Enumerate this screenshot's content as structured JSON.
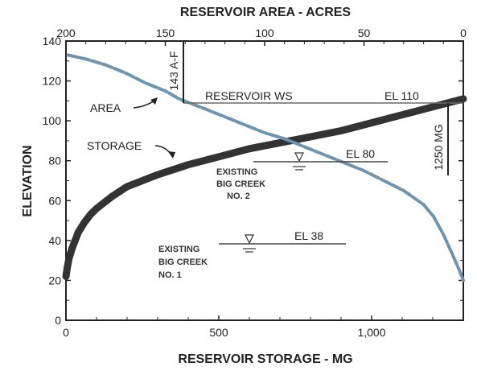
{
  "chart_data": {
    "type": "line",
    "title": "",
    "top_axis": {
      "label": "RESERVOIR AREA - ACRES",
      "range": [
        200,
        0
      ],
      "ticks": [
        {
          "value": 200,
          "label": "200"
        },
        {
          "value": 150,
          "label": "150"
        },
        {
          "value": 100,
          "label": "100"
        },
        {
          "value": 50,
          "label": "50"
        },
        {
          "value": 0,
          "label": "0"
        }
      ]
    },
    "x_axis": {
      "label": "RESERVOIR STORAGE - MG",
      "range": [
        0,
        1300
      ],
      "ticks": [
        {
          "value": 0,
          "label": "0"
        },
        {
          "value": 500,
          "label": "500"
        },
        {
          "value": 1000,
          "label": "1,000"
        }
      ]
    },
    "y_axis": {
      "label": "ELEVATION",
      "range": [
        0,
        140
      ],
      "ticks": [
        {
          "value": 0,
          "label": "0"
        },
        {
          "value": 20,
          "label": "20"
        },
        {
          "value": 40,
          "label": "40"
        },
        {
          "value": 60,
          "label": "60"
        },
        {
          "value": 80,
          "label": "80"
        },
        {
          "value": 100,
          "label": "100"
        },
        {
          "value": 120,
          "label": "120"
        },
        {
          "value": 140,
          "label": "140"
        }
      ]
    },
    "grid": false,
    "series": [
      {
        "name": "STORAGE",
        "axis": "bottom",
        "color": "#333333",
        "style": "solid-thick",
        "points": [
          [
            0,
            22
          ],
          [
            5,
            27
          ],
          [
            10,
            31
          ],
          [
            20,
            36
          ],
          [
            30,
            40
          ],
          [
            40,
            44
          ],
          [
            60,
            49
          ],
          [
            80,
            53
          ],
          [
            100,
            56
          ],
          [
            150,
            62
          ],
          [
            200,
            67
          ],
          [
            300,
            73
          ],
          [
            400,
            78
          ],
          [
            500,
            82
          ],
          [
            600,
            86
          ],
          [
            700,
            89
          ],
          [
            800,
            92
          ],
          [
            900,
            95
          ],
          [
            1000,
            99
          ],
          [
            1100,
            103
          ],
          [
            1200,
            107
          ],
          [
            1300,
            111
          ]
        ]
      },
      {
        "name": "AREA",
        "axis": "top",
        "color": "#6f94ad",
        "style": "dashed",
        "points": [
          [
            199,
            133
          ],
          [
            190,
            131
          ],
          [
            180,
            128
          ],
          [
            170,
            124
          ],
          [
            160,
            119
          ],
          [
            150,
            115
          ],
          [
            143,
            111
          ],
          [
            130,
            106
          ],
          [
            120,
            102
          ],
          [
            110,
            98
          ],
          [
            100,
            94
          ],
          [
            90,
            91
          ],
          [
            80,
            87
          ],
          [
            70,
            83
          ],
          [
            60,
            79
          ],
          [
            50,
            75
          ],
          [
            40,
            70
          ],
          [
            30,
            65
          ],
          [
            20,
            58
          ],
          [
            15,
            52
          ],
          [
            10,
            43
          ],
          [
            5,
            32
          ],
          [
            2,
            25
          ],
          [
            0,
            20
          ]
        ]
      }
    ],
    "annotations": {
      "area_label": "AREA",
      "storage_label": "STORAGE",
      "area_marker": "143 A-F",
      "reservoir_ws": "RESERVOIR WS",
      "el_110": "EL 110",
      "storage_marker": "1250 MG",
      "el_80": "EL 80",
      "el_38": "EL 38",
      "bc2_line1": "EXISTING",
      "bc2_line2": "BIG CREEK",
      "bc2_line3": "NO. 2",
      "bc1_line1": "EXISTING",
      "bc1_line2": "BIG CREEK",
      "bc1_line3": "NO. 1"
    }
  }
}
